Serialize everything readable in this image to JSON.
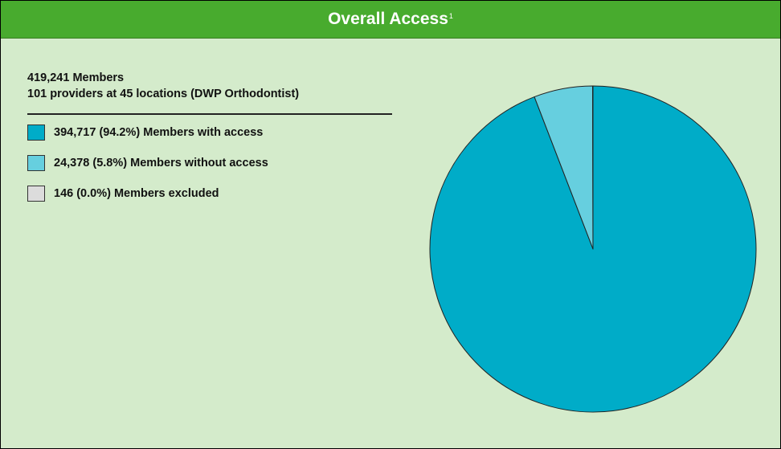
{
  "header": {
    "title": "Overall Access",
    "footnote": "1",
    "color": "#48ab2e"
  },
  "summary": {
    "members": "419,241 Members",
    "providers": "101 providers at 45 locations (DWP Orthodontist)"
  },
  "legend": [
    {
      "label": "394,717 (94.2%) Members with access",
      "color": "#00acc8"
    },
    {
      "label": "24,378 (5.8%) Members without access",
      "color": "#66cfdf"
    },
    {
      "label": "146 (0.0%) Members excluded",
      "color": "#dcdcdc"
    }
  ],
  "chart_data": {
    "type": "pie",
    "title": "Overall Access",
    "total": 419241,
    "slices": [
      {
        "label": "Members with access",
        "value": 394717,
        "percent": 94.2,
        "color": "#00acc8"
      },
      {
        "label": "Members without access",
        "value": 24378,
        "percent": 5.8,
        "color": "#66cfdf"
      },
      {
        "label": "Members excluded",
        "value": 146,
        "percent": 0.0,
        "color": "#dcdcdc"
      }
    ]
  }
}
